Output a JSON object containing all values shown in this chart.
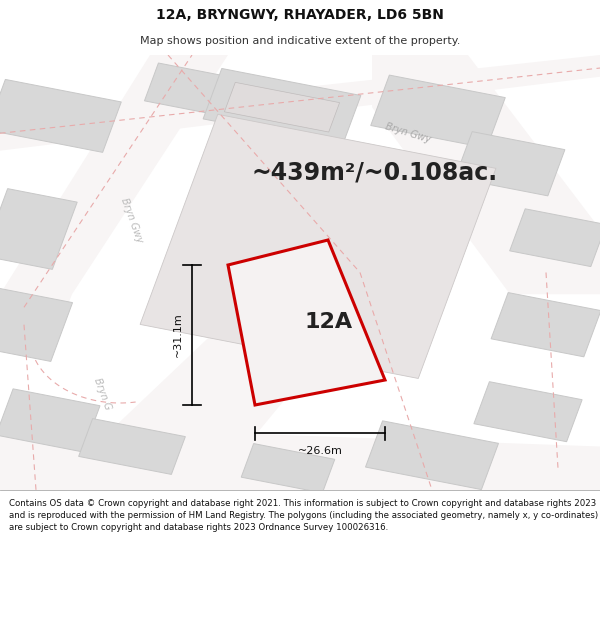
{
  "title_line1": "12A, BRYNGWY, RHAYADER, LD6 5BN",
  "title_line2": "Map shows position and indicative extent of the property.",
  "area_text": "~439m²/~0.108ac.",
  "label_12A": "12A",
  "dim_width": "~26.6m",
  "dim_height": "~31.1m",
  "road_label_topright": "Bryn Gwy",
  "road_label_mid": "Bryn Gwy",
  "road_label_bot": "Bryn G",
  "footer": "Contains OS data © Crown copyright and database right 2021. This information is subject to Crown copyright and database rights 2023 and is reproduced with the permission of HM Land Registry. The polygons (including the associated geometry, namely x, y co-ordinates) are subject to Crown copyright and database rights 2023 Ordnance Survey 100026316.",
  "bg_map_color": "#f0eeee",
  "building_fill": "#d8d8d8",
  "building_edge": "#c8c8c8",
  "road_line_color": "#e8aaaa",
  "plot_fill": "#f5f2f2",
  "plot_edge": "#cc0000",
  "inner_fill": "#e8e4e4",
  "inner_edge": "#cccccc",
  "footer_bg": "#ffffff",
  "title_bg": "#ffffff",
  "title_fontsize": 10,
  "subtitle_fontsize": 8,
  "area_fontsize": 17,
  "label_fontsize": 16,
  "dim_fontsize": 8,
  "road_fontsize": 7,
  "footer_fontsize": 6.2
}
